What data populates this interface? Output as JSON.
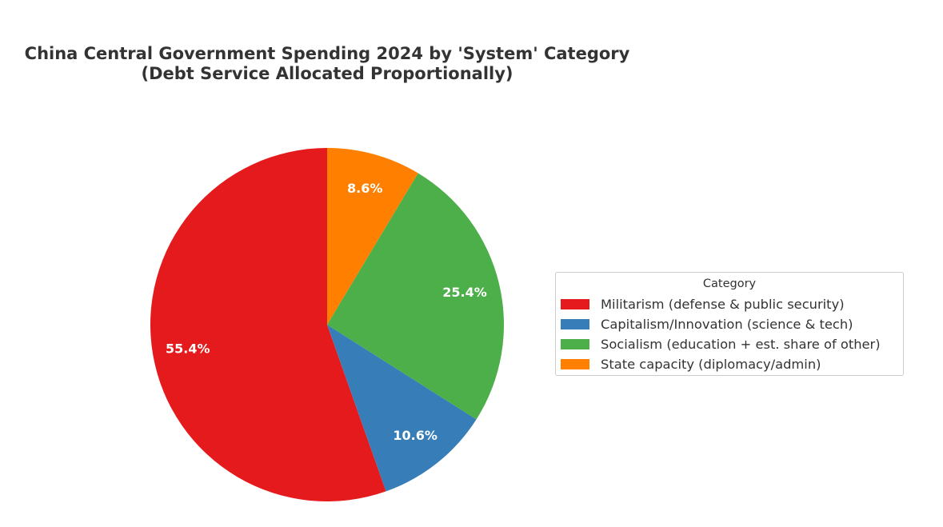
{
  "chart_data": {
    "type": "pie",
    "title": "China Central Government Spending 2024 by 'System' Category",
    "subtitle": "(Debt Service Allocated Proportionally)",
    "start_angle_deg": 90,
    "direction": "counterclockwise",
    "slices": [
      {
        "label": "Militarism (defense & public security)",
        "value": 55.4,
        "pct_label": "55.4%",
        "color": "#e41a1c"
      },
      {
        "label": "Capitalism/Innovation (science & tech)",
        "value": 10.6,
        "pct_label": "10.6%",
        "color": "#377eb8"
      },
      {
        "label": "Socialism (education + est. share of other)",
        "value": 25.4,
        "pct_label": "25.4%",
        "color": "#4daf4a"
      },
      {
        "label": "State capacity (diplomacy/admin)",
        "value": 8.6,
        "pct_label": "8.6%",
        "color": "#ff7f00"
      }
    ],
    "legend": {
      "title": "Category",
      "position": "right"
    }
  }
}
